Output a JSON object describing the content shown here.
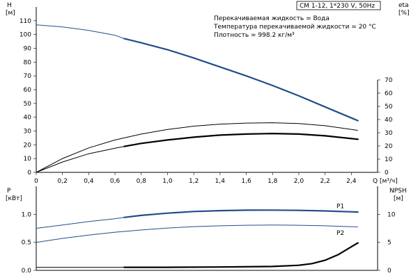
{
  "chart_data": [
    {
      "type": "line",
      "model": "CM 1-12, 1*230 V, 50Hz",
      "info": [
        "Перекачиваемая жидкость = Вода",
        "Температура перекачиваемой жидкости = 20 °C",
        "Плотность = 998.2 кг/м³"
      ],
      "y_left_label": [
        "H",
        "[м]"
      ],
      "y_right_label": [
        "eta",
        "[%]"
      ],
      "x_label": "Q [м³/ч]",
      "xlim": [
        0,
        2.6
      ],
      "ylim": [
        0,
        120
      ],
      "x_ticks": [
        "0",
        "0,2",
        "0,4",
        "0,6",
        "0,8",
        "1,0",
        "1,2",
        "1,4",
        "1,6",
        "1,8",
        "2,0",
        "2,2",
        "2,4"
      ],
      "y_ticks": [
        "0",
        "10",
        "20",
        "30",
        "40",
        "50",
        "60",
        "70",
        "80",
        "90",
        "100",
        "110"
      ],
      "y2_ticks": [
        "0",
        "10",
        "20",
        "30",
        "40",
        "50",
        "60",
        "70"
      ],
      "series": [
        {
          "axis": "left",
          "color": "#1f4e8c",
          "x": [
            0,
            0.2,
            0.4,
            0.6,
            0.67,
            0.8,
            1.0,
            1.2,
            1.4,
            1.6,
            1.8,
            2.0,
            2.2,
            2.45
          ],
          "y": [
            107,
            105.5,
            103,
            99.5,
            97,
            94,
            89,
            83,
            76.5,
            70,
            63,
            55.5,
            47.5,
            37.5
          ],
          "bold_from": 0.67
        },
        {
          "axis": "right",
          "color": "#000000",
          "x": [
            0,
            0.2,
            0.4,
            0.6,
            0.8,
            1.0,
            1.2,
            1.4,
            1.6,
            1.8,
            2.0,
            2.2,
            2.45
          ],
          "y": [
            0,
            10.5,
            18.5,
            24.5,
            29,
            32.5,
            35,
            36.5,
            37.3,
            37.6,
            37,
            35.3,
            31.8
          ],
          "bold_from": 99
        },
        {
          "axis": "left",
          "color": "#000000",
          "x": [
            0,
            0.2,
            0.4,
            0.6,
            0.67,
            0.8,
            1.0,
            1.2,
            1.4,
            1.6,
            1.8,
            2.0,
            2.2,
            2.45
          ],
          "y": [
            0,
            7.5,
            13.5,
            17.5,
            18.8,
            21,
            23.5,
            25.5,
            27,
            27.8,
            28.2,
            27.8,
            26.5,
            24
          ],
          "bold_from": 0.67
        }
      ]
    },
    {
      "type": "line",
      "y_left_label": [
        "P",
        "[кВт]"
      ],
      "y_right_label": [
        "NPSH",
        "[м]"
      ],
      "xlim": [
        0,
        2.6
      ],
      "ylim": [
        0,
        1.5
      ],
      "y_ticks": [
        "0.0",
        "0.5",
        "1.0"
      ],
      "y2_ticks": [
        "0",
        "5",
        "10"
      ],
      "series": [
        {
          "name": "P1",
          "axis": "left",
          "color": "#1f4e8c",
          "x": [
            0,
            0.2,
            0.4,
            0.6,
            0.67,
            0.8,
            1.0,
            1.2,
            1.4,
            1.6,
            1.8,
            2.0,
            2.2,
            2.45
          ],
          "y": [
            0.75,
            0.81,
            0.87,
            0.92,
            0.945,
            0.98,
            1.02,
            1.05,
            1.065,
            1.073,
            1.075,
            1.07,
            1.06,
            1.04
          ],
          "bold_from": 0.67
        },
        {
          "name": "P2",
          "axis": "left",
          "color": "#1f4e8c",
          "x": [
            0,
            0.2,
            0.4,
            0.6,
            0.8,
            1.0,
            1.2,
            1.4,
            1.6,
            1.8,
            2.0,
            2.2,
            2.45
          ],
          "y": [
            0.5,
            0.57,
            0.63,
            0.68,
            0.72,
            0.755,
            0.78,
            0.795,
            0.805,
            0.808,
            0.805,
            0.795,
            0.775
          ],
          "bold_from": 99
        },
        {
          "axis": "right",
          "color": "#000000",
          "x": [
            0,
            0.4,
            0.67,
            1.0,
            1.4,
            1.8,
            2.0,
            2.1,
            2.2,
            2.3,
            2.4,
            2.45
          ],
          "y": [
            0.55,
            0.55,
            0.55,
            0.55,
            0.6,
            0.7,
            0.9,
            1.2,
            1.8,
            2.8,
            4.2,
            4.9
          ],
          "bold_from": 0.67
        }
      ]
    }
  ]
}
